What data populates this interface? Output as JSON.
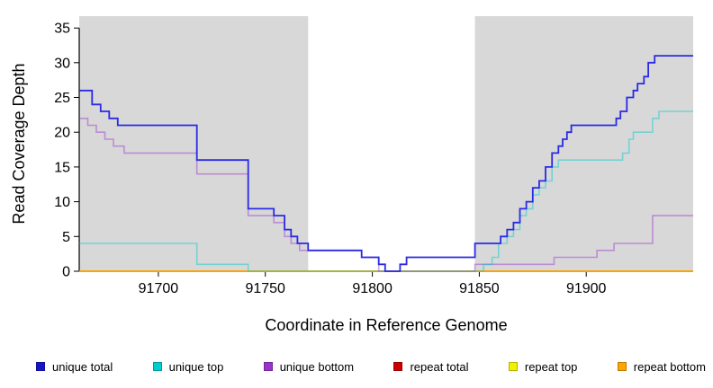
{
  "figure": {
    "background": "#ffffff",
    "axis_color": "#000000"
  },
  "chart_data": {
    "type": "line",
    "step_style": "hv",
    "title": "",
    "xlabel": "Coordinate in Reference Genome",
    "ylabel": "Read Coverage Depth",
    "xlim": [
      91663,
      91950
    ],
    "ylim": [
      0,
      36.7
    ],
    "x_ticks": [
      91700,
      91750,
      91800,
      91850,
      91900
    ],
    "y_ticks": [
      0,
      5,
      10,
      15,
      20,
      25,
      30,
      35
    ],
    "grid": false,
    "legend_position": "bottom",
    "shaded_regions": [
      {
        "x0": 91663,
        "x1": 91770,
        "color": "#d8d8d8"
      },
      {
        "x0": 91848,
        "x1": 91950,
        "color": "#d8d8d8"
      }
    ],
    "series": [
      {
        "name": "unique total",
        "legend_color": "#1414c8",
        "line_color": "#2a2ae6",
        "opacity": 1,
        "width": 1.8,
        "points": [
          [
            91663,
            26
          ],
          [
            91669,
            24
          ],
          [
            91673,
            23
          ],
          [
            91677,
            22
          ],
          [
            91681,
            21
          ],
          [
            91718,
            16
          ],
          [
            91742,
            9
          ],
          [
            91754,
            8
          ],
          [
            91759,
            6
          ],
          [
            91762,
            5
          ],
          [
            91765,
            4
          ],
          [
            91770,
            3
          ],
          [
            91795,
            2
          ],
          [
            91803,
            1
          ],
          [
            91806,
            0
          ],
          [
            91813,
            1
          ],
          [
            91816,
            2
          ],
          [
            91848,
            4
          ],
          [
            91860,
            5
          ],
          [
            91863,
            6
          ],
          [
            91866,
            7
          ],
          [
            91869,
            9
          ],
          [
            91872,
            10
          ],
          [
            91875,
            12
          ],
          [
            91878,
            13
          ],
          [
            91881,
            15
          ],
          [
            91884,
            17
          ],
          [
            91887,
            18
          ],
          [
            91889,
            19
          ],
          [
            91891,
            20
          ],
          [
            91893,
            21
          ],
          [
            91914,
            22
          ],
          [
            91916,
            23
          ],
          [
            91919,
            25
          ],
          [
            91922,
            26
          ],
          [
            91924,
            27
          ],
          [
            91927,
            28
          ],
          [
            91929,
            30
          ],
          [
            91932,
            31
          ]
        ]
      },
      {
        "name": "unique top",
        "legend_color": "#00cdcd",
        "line_color": "#00cdcd",
        "opacity": 0.45,
        "width": 1.6,
        "points": [
          [
            91663,
            4
          ],
          [
            91718,
            1
          ],
          [
            91742,
            0
          ],
          [
            91852,
            1
          ],
          [
            91856,
            2
          ],
          [
            91859,
            4
          ],
          [
            91863,
            5
          ],
          [
            91866,
            6
          ],
          [
            91869,
            8
          ],
          [
            91872,
            9
          ],
          [
            91875,
            11
          ],
          [
            91878,
            12
          ],
          [
            91881,
            13
          ],
          [
            91884,
            15
          ],
          [
            91887,
            16
          ],
          [
            91917,
            17
          ],
          [
            91920,
            19
          ],
          [
            91922,
            20
          ],
          [
            91931,
            22
          ],
          [
            91934,
            23
          ]
        ]
      },
      {
        "name": "unique bottom",
        "legend_color": "#9a32cd",
        "line_color": "#9a32cd",
        "opacity": 0.45,
        "width": 1.6,
        "points": [
          [
            91663,
            22
          ],
          [
            91667,
            21
          ],
          [
            91671,
            20
          ],
          [
            91675,
            19
          ],
          [
            91679,
            18
          ],
          [
            91684,
            17
          ],
          [
            91718,
            14
          ],
          [
            91742,
            8
          ],
          [
            91754,
            7
          ],
          [
            91759,
            5
          ],
          [
            91762,
            4
          ],
          [
            91766,
            3
          ],
          [
            91795,
            2
          ],
          [
            91803,
            0
          ],
          [
            91848,
            1
          ],
          [
            91885,
            2
          ],
          [
            91905,
            3
          ],
          [
            91913,
            4
          ],
          [
            91931,
            8
          ]
        ]
      },
      {
        "name": "repeat total",
        "legend_color": "#cd0000",
        "line_color": "#cd0000",
        "opacity": 1,
        "width": 1.5,
        "points": [
          [
            91663,
            0
          ]
        ]
      },
      {
        "name": "repeat top",
        "legend_color": "#f0f000",
        "line_color": "#f0f000",
        "opacity": 1,
        "width": 1.5,
        "points": [
          [
            91663,
            0
          ]
        ]
      },
      {
        "name": "repeat bottom",
        "legend_color": "#ffa500",
        "line_color": "#ffa500",
        "opacity": 1,
        "width": 1.8,
        "points": [
          [
            91663,
            0
          ]
        ]
      }
    ],
    "draw_order": [
      "repeat total",
      "repeat top",
      "repeat bottom",
      "unique bottom",
      "unique top",
      "unique total"
    ]
  }
}
